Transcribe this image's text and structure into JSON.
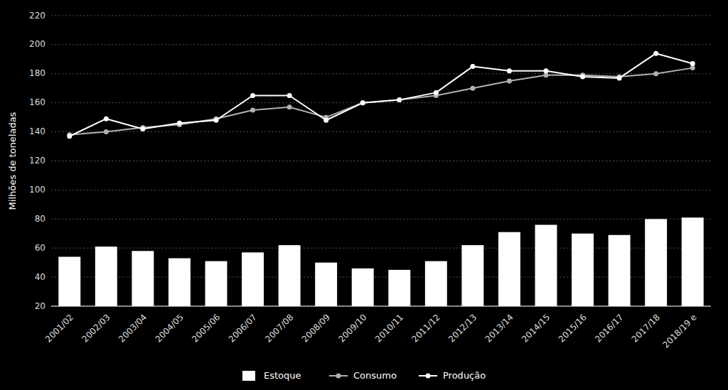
{
  "chart_data": {
    "type": "bar",
    "categories": [
      "2001/02",
      "2002/03",
      "2003/04",
      "2004/05",
      "2005/06",
      "2006/07",
      "2007/08",
      "2008/09",
      "2009/10",
      "2010/11",
      "2011/12",
      "2012/13",
      "2013/14",
      "2014/15",
      "2015/16",
      "2016/17",
      "2017/18",
      "2018/19 e"
    ],
    "ylabel": "Milhões de toneladas",
    "ylim": [
      20,
      220
    ],
    "yticks": [
      20,
      40,
      60,
      80,
      100,
      120,
      140,
      160,
      180,
      200,
      220
    ],
    "grid": true,
    "legend": "bottom",
    "series": [
      {
        "name": "Estoque",
        "type": "bar",
        "color": "#ffffff",
        "values": [
          54,
          61,
          58,
          53,
          51,
          57,
          62,
          50,
          46,
          45,
          51,
          62,
          71,
          76,
          70,
          69,
          80,
          81
        ]
      },
      {
        "name": "Consumo",
        "type": "line",
        "color": "#b0b0b0",
        "marker": "circle",
        "values": [
          138,
          140,
          143,
          145,
          149,
          155,
          157,
          150,
          160,
          162,
          165,
          170,
          175,
          179,
          179,
          178,
          180,
          184
        ]
      },
      {
        "name": "Produção",
        "type": "line",
        "color": "#ffffff",
        "marker": "circle",
        "values": [
          137,
          149,
          142,
          146,
          148,
          165,
          165,
          148,
          160,
          162,
          167,
          185,
          182,
          182,
          178,
          177,
          194,
          187
        ]
      }
    ]
  }
}
